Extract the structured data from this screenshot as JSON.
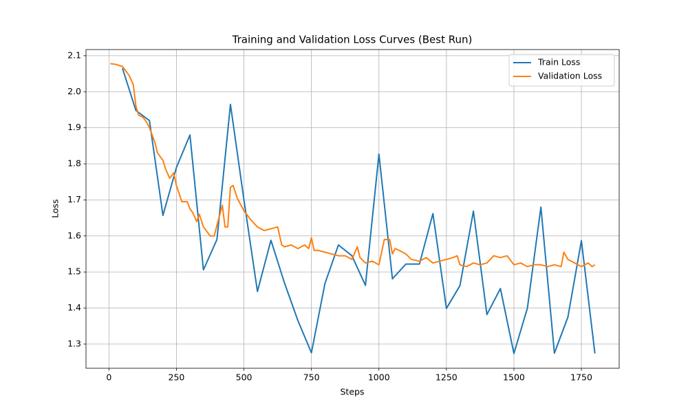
{
  "chart_data": {
    "type": "line",
    "title": "Training and Validation Loss Curves (Best Run)",
    "xlabel": "Steps",
    "ylabel": "Loss",
    "xlim": [
      -85,
      1890
    ],
    "ylim": [
      1.233,
      2.117
    ],
    "xticks": [
      0,
      250,
      500,
      750,
      1000,
      1250,
      1500,
      1750
    ],
    "yticks": [
      1.3,
      1.4,
      1.5,
      1.6,
      1.7,
      1.8,
      1.9,
      {
        "value": 2,
        "label": "2.0"
      },
      2.1
    ],
    "grid": true,
    "legend": "upper right",
    "series": [
      {
        "name": "Train Loss",
        "color": "#1f77b4",
        "x": [
          50,
          100,
          150,
          200,
          250,
          300,
          350,
          400,
          450,
          500,
          550,
          600,
          650,
          700,
          750,
          800,
          850,
          900,
          950,
          1000,
          1050,
          1100,
          1150,
          1200,
          1250,
          1300,
          1350,
          1400,
          1450,
          1500,
          1550,
          1600,
          1650,
          1700,
          1750,
          1800
        ],
        "values": [
          2.065,
          1.948,
          1.92,
          1.657,
          1.79,
          1.88,
          1.506,
          1.59,
          1.965,
          1.7,
          1.446,
          1.588,
          1.47,
          1.365,
          1.276,
          1.468,
          1.575,
          1.545,
          1.463,
          1.827,
          1.481,
          1.522,
          1.522,
          1.662,
          1.399,
          1.462,
          1.669,
          1.382,
          1.454,
          1.274,
          1.4,
          1.68,
          1.275,
          1.375,
          1.587,
          1.274
        ]
      },
      {
        "name": "Validation Loss",
        "color": "#ff7f0e",
        "x": [
          5,
          25,
          50,
          75,
          90,
          100,
          110,
          125,
          140,
          150,
          170,
          180,
          200,
          210,
          225,
          240,
          250,
          270,
          290,
          300,
          310,
          325,
          335,
          350,
          375,
          390,
          400,
          420,
          430,
          440,
          450,
          460,
          475,
          500,
          525,
          550,
          575,
          600,
          625,
          640,
          650,
          675,
          700,
          725,
          740,
          750,
          760,
          775,
          800,
          825,
          850,
          875,
          900,
          920,
          930,
          950,
          975,
          1000,
          1020,
          1040,
          1050,
          1060,
          1075,
          1100,
          1120,
          1150,
          1175,
          1200,
          1225,
          1250,
          1275,
          1290,
          1300,
          1325,
          1350,
          1375,
          1400,
          1425,
          1450,
          1475,
          1500,
          1525,
          1550,
          1575,
          1600,
          1625,
          1650,
          1675,
          1685,
          1700,
          1725,
          1750,
          1775,
          1790,
          1800
        ],
        "values": [
          2.078,
          2.076,
          2.07,
          2.045,
          2.02,
          1.96,
          1.935,
          1.93,
          1.915,
          1.9,
          1.86,
          1.83,
          1.81,
          1.785,
          1.76,
          1.775,
          1.74,
          1.695,
          1.695,
          1.675,
          1.665,
          1.64,
          1.66,
          1.625,
          1.6,
          1.6,
          1.63,
          1.685,
          1.625,
          1.625,
          1.735,
          1.74,
          1.705,
          1.67,
          1.645,
          1.625,
          1.615,
          1.62,
          1.625,
          1.575,
          1.57,
          1.575,
          1.565,
          1.575,
          1.565,
          1.595,
          1.56,
          1.56,
          1.555,
          1.55,
          1.545,
          1.545,
          1.535,
          1.57,
          1.54,
          1.525,
          1.53,
          1.52,
          1.59,
          1.59,
          1.55,
          1.565,
          1.56,
          1.55,
          1.535,
          1.53,
          1.54,
          1.525,
          1.53,
          1.535,
          1.54,
          1.545,
          1.52,
          1.515,
          1.525,
          1.52,
          1.525,
          1.545,
          1.54,
          1.545,
          1.52,
          1.525,
          1.515,
          1.52,
          1.52,
          1.515,
          1.52,
          1.515,
          1.555,
          1.535,
          1.525,
          1.515,
          1.525,
          1.515,
          1.52
        ]
      }
    ]
  }
}
